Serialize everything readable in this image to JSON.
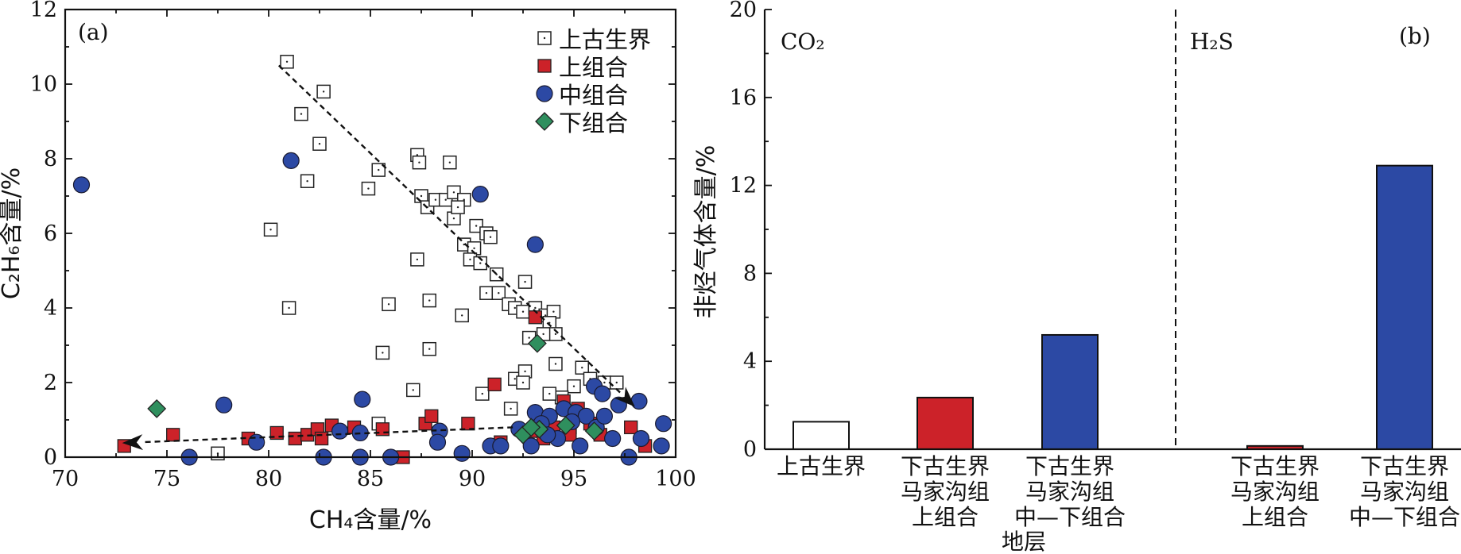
{
  "chart_data": [
    {
      "type": "scatter",
      "panel_label": "(a)",
      "xlabel": "CH₄含量/%",
      "ylabel": "C₂H₆含量/%",
      "xlim": [
        70,
        100
      ],
      "ylim": [
        0,
        12
      ],
      "xticks": [
        70,
        75,
        80,
        85,
        90,
        95,
        100
      ],
      "yticks": [
        0,
        2,
        4,
        6,
        8,
        10,
        12
      ],
      "legend_position": "top-right",
      "series": [
        {
          "name": "上古生界",
          "marker": "open-square-dot",
          "color": "#ffffff",
          "points": [
            [
              80.9,
              10.6
            ],
            [
              82.7,
              9.8
            ],
            [
              81.6,
              9.2
            ],
            [
              82.5,
              8.4
            ],
            [
              81.9,
              7.4
            ],
            [
              85.4,
              7.7
            ],
            [
              84.9,
              7.2
            ],
            [
              80.1,
              6.1
            ],
            [
              81.0,
              4.0
            ],
            [
              85.9,
              4.1
            ],
            [
              87.3,
              8.1
            ],
            [
              87.4,
              7.9
            ],
            [
              88.9,
              7.9
            ],
            [
              87.5,
              7.0
            ],
            [
              87.8,
              6.7
            ],
            [
              88.2,
              6.9
            ],
            [
              88.7,
              6.9
            ],
            [
              89.1,
              7.1
            ],
            [
              89.1,
              6.4
            ],
            [
              89.6,
              6.9
            ],
            [
              89.3,
              6.7
            ],
            [
              90.2,
              6.2
            ],
            [
              90.7,
              6.0
            ],
            [
              89.6,
              5.7
            ],
            [
              90.1,
              5.6
            ],
            [
              90.9,
              5.9
            ],
            [
              89.9,
              5.3
            ],
            [
              90.4,
              5.2
            ],
            [
              87.3,
              5.3
            ],
            [
              91.2,
              4.9
            ],
            [
              90.7,
              4.4
            ],
            [
              91.3,
              4.4
            ],
            [
              91.8,
              4.1
            ],
            [
              92.6,
              4.7
            ],
            [
              92.1,
              4.0
            ],
            [
              92.5,
              3.9
            ],
            [
              93.1,
              4.0
            ],
            [
              93.6,
              3.8
            ],
            [
              94.0,
              3.9
            ],
            [
              93.8,
              3.6
            ],
            [
              94.1,
              3.3
            ],
            [
              93.5,
              3.3
            ],
            [
              92.8,
              3.2
            ],
            [
              87.9,
              4.2
            ],
            [
              89.5,
              3.8
            ],
            [
              85.6,
              2.8
            ],
            [
              87.9,
              2.9
            ],
            [
              87.1,
              1.8
            ],
            [
              92.1,
              2.1
            ],
            [
              92.6,
              2.3
            ],
            [
              94.1,
              2.5
            ],
            [
              95.4,
              2.4
            ],
            [
              95.8,
              2.1
            ],
            [
              96.5,
              2.0
            ],
            [
              95.0,
              1.9
            ],
            [
              94.4,
              1.6
            ],
            [
              93.8,
              1.7
            ],
            [
              92.5,
              2.0
            ],
            [
              90.5,
              1.7
            ],
            [
              91.9,
              1.3
            ],
            [
              85.4,
              0.9
            ],
            [
              93.5,
              0.9
            ],
            [
              94.8,
              0.8
            ],
            [
              77.5,
              0.1
            ],
            [
              97.1,
              2.0
            ]
          ]
        },
        {
          "name": "上组合",
          "marker": "filled-square",
          "color": "#cc2229",
          "points": [
            [
              72.9,
              0.3
            ],
            [
              75.3,
              0.6
            ],
            [
              79.0,
              0.5
            ],
            [
              80.4,
              0.65
            ],
            [
              81.3,
              0.5
            ],
            [
              81.9,
              0.6
            ],
            [
              82.4,
              0.75
            ],
            [
              82.6,
              0.5
            ],
            [
              83.1,
              0.85
            ],
            [
              84.2,
              0.8
            ],
            [
              85.6,
              0.75
            ],
            [
              86.6,
              0.0
            ],
            [
              87.7,
              0.9
            ],
            [
              88.0,
              1.1
            ],
            [
              89.8,
              0.9
            ],
            [
              91.1,
              1.95
            ],
            [
              93.1,
              3.75
            ],
            [
              93.1,
              0.7
            ],
            [
              94.0,
              0.8
            ],
            [
              94.5,
              1.5
            ],
            [
              95.2,
              1.3
            ],
            [
              96.3,
              0.6
            ],
            [
              97.8,
              0.8
            ],
            [
              98.5,
              0.3
            ],
            [
              93.5,
              0.5
            ],
            [
              94.8,
              0.6
            ],
            [
              95.8,
              0.9
            ],
            [
              91.4,
              0.4
            ]
          ]
        },
        {
          "name": "中组合",
          "marker": "filled-circle",
          "color": "#2c49a4",
          "points": [
            [
              70.8,
              7.3
            ],
            [
              81.1,
              7.95
            ],
            [
              90.4,
              7.05
            ],
            [
              93.1,
              5.7
            ],
            [
              77.8,
              1.4
            ],
            [
              84.6,
              1.55
            ],
            [
              76.1,
              0.0
            ],
            [
              79.4,
              0.4
            ],
            [
              83.5,
              0.7
            ],
            [
              84.5,
              0.65
            ],
            [
              88.4,
              0.7
            ],
            [
              88.3,
              0.4
            ],
            [
              89.5,
              0.1
            ],
            [
              90.9,
              0.3
            ],
            [
              91.4,
              0.3
            ],
            [
              92.3,
              0.75
            ],
            [
              93.1,
              1.2
            ],
            [
              93.8,
              1.1
            ],
            [
              94.5,
              1.3
            ],
            [
              95.1,
              1.2
            ],
            [
              95.6,
              1.1
            ],
            [
              96.0,
              1.9
            ],
            [
              96.4,
              1.7
            ],
            [
              97.2,
              1.4
            ],
            [
              98.2,
              1.5
            ],
            [
              99.4,
              0.9
            ],
            [
              98.3,
              0.5
            ],
            [
              99.3,
              0.3
            ],
            [
              96.9,
              0.5
            ],
            [
              96.1,
              0.8
            ],
            [
              95.3,
              0.3
            ],
            [
              94.2,
              0.5
            ],
            [
              93.4,
              0.9
            ],
            [
              92.9,
              0.3
            ],
            [
              84.5,
              0.0
            ],
            [
              86.0,
              0.0
            ],
            [
              82.7,
              0.0
            ],
            [
              97.7,
              0.0
            ],
            [
              94.9,
              0.95
            ],
            [
              96.5,
              1.1
            ],
            [
              93.7,
              0.6
            ]
          ]
        },
        {
          "name": "下组合",
          "marker": "filled-diamond",
          "color": "#2f8f5e",
          "points": [
            [
              74.5,
              1.3
            ],
            [
              93.2,
              3.05
            ],
            [
              93.3,
              0.75
            ],
            [
              92.5,
              0.6
            ],
            [
              94.6,
              0.85
            ],
            [
              96.0,
              0.7
            ],
            [
              92.9,
              0.8
            ]
          ]
        }
      ],
      "trend_arrows": [
        {
          "from": [
            80.5,
            10.5
          ],
          "to": [
            98.0,
            1.35
          ]
        },
        {
          "from": [
            92.0,
            0.8
          ],
          "to": [
            72.8,
            0.38
          ]
        }
      ]
    },
    {
      "type": "bar",
      "panel_label": "(b)",
      "ylabel": "非烃气体含量/%",
      "ylim": [
        0,
        20
      ],
      "yticks": [
        0,
        4,
        8,
        12,
        16,
        20
      ],
      "groups": [
        "CO₂",
        "H₂S"
      ],
      "xlabel": "地层",
      "categories": [
        {
          "lines": [
            "上古生界"
          ],
          "group": "CO₂",
          "value": 1.25,
          "color": "#ffffff"
        },
        {
          "lines": [
            "下古生界",
            "马家沟组",
            "上组合"
          ],
          "group": "CO₂",
          "value": 2.35,
          "color": "#cc2229"
        },
        {
          "lines": [
            "下古生界",
            "马家沟组",
            "中—下组合"
          ],
          "group": "CO₂",
          "value": 5.2,
          "color": "#2c49a4"
        },
        {
          "lines": [
            "下古生界",
            "马家沟组",
            "上组合"
          ],
          "group": "H₂S",
          "value": 0.15,
          "color": "#cc2229"
        },
        {
          "lines": [
            "下古生界",
            "马家沟组",
            "中—下组合"
          ],
          "group": "H₂S",
          "value": 12.9,
          "color": "#2c49a4"
        }
      ]
    }
  ]
}
